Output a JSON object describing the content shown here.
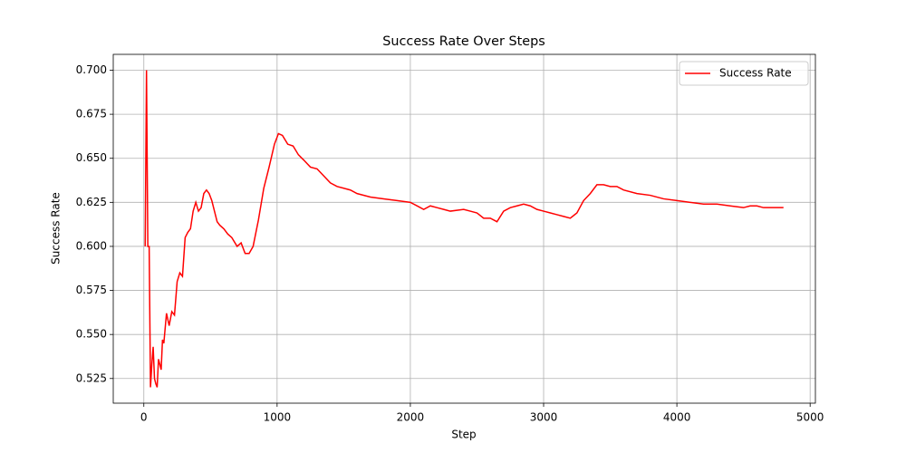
{
  "chart_data": {
    "type": "line",
    "title": "Success Rate Over Steps",
    "xlabel": "Step",
    "ylabel": "Success Rate",
    "x": [
      10,
      20,
      30,
      40,
      50,
      60,
      70,
      80,
      90,
      100,
      110,
      120,
      130,
      140,
      150,
      170,
      190,
      210,
      230,
      250,
      270,
      290,
      310,
      330,
      350,
      370,
      390,
      410,
      430,
      450,
      470,
      490,
      510,
      530,
      550,
      570,
      600,
      630,
      660,
      700,
      730,
      760,
      790,
      820,
      860,
      900,
      940,
      980,
      1010,
      1040,
      1080,
      1120,
      1160,
      1200,
      1250,
      1300,
      1350,
      1400,
      1450,
      1500,
      1550,
      1600,
      1700,
      1800,
      1900,
      2000,
      2050,
      2100,
      2150,
      2200,
      2250,
      2300,
      2400,
      2450,
      2500,
      2550,
      2600,
      2650,
      2700,
      2750,
      2800,
      2850,
      2900,
      2950,
      3000,
      3050,
      3100,
      3150,
      3200,
      3250,
      3300,
      3350,
      3400,
      3450,
      3500,
      3550,
      3600,
      3700,
      3800,
      3900,
      4000,
      4100,
      4200,
      4300,
      4400,
      4500,
      4550,
      4600,
      4650,
      4700,
      4800
    ],
    "series": [
      {
        "name": "Success Rate",
        "color": "#ff0000",
        "values": [
          0.6,
          0.7,
          0.6,
          0.6,
          0.52,
          0.533,
          0.543,
          0.525,
          0.522,
          0.52,
          0.536,
          0.533,
          0.53,
          0.547,
          0.545,
          0.562,
          0.555,
          0.563,
          0.561,
          0.58,
          0.585,
          0.583,
          0.605,
          0.608,
          0.61,
          0.62,
          0.625,
          0.62,
          0.622,
          0.63,
          0.632,
          0.63,
          0.626,
          0.62,
          0.614,
          0.612,
          0.61,
          0.607,
          0.605,
          0.6,
          0.602,
          0.596,
          0.596,
          0.6,
          0.615,
          0.633,
          0.645,
          0.658,
          0.664,
          0.663,
          0.658,
          0.657,
          0.652,
          0.649,
          0.645,
          0.644,
          0.64,
          0.636,
          0.634,
          0.633,
          0.632,
          0.63,
          0.628,
          0.627,
          0.626,
          0.625,
          0.623,
          0.621,
          0.623,
          0.622,
          0.621,
          0.62,
          0.621,
          0.62,
          0.619,
          0.616,
          0.616,
          0.614,
          0.62,
          0.622,
          0.623,
          0.624,
          0.623,
          0.621,
          0.62,
          0.619,
          0.618,
          0.617,
          0.616,
          0.619,
          0.626,
          0.63,
          0.635,
          0.635,
          0.634,
          0.634,
          0.632,
          0.63,
          0.629,
          0.627,
          0.626,
          0.625,
          0.624,
          0.624,
          0.623,
          0.622,
          0.623,
          0.623,
          0.622,
          0.622,
          0.622
        ]
      }
    ],
    "xlim": [
      -229.5,
      5039.5
    ],
    "xticks": [
      0,
      1000,
      2000,
      3000,
      4000,
      5000
    ],
    "ylim": [
      0.511,
      0.709
    ],
    "yticks": [
      {
        "value": 0.525,
        "label": "0.525"
      },
      {
        "value": 0.55,
        "label": "0.550"
      },
      {
        "value": 0.575,
        "label": "0.575"
      },
      {
        "value": 0.6,
        "label": "0.600"
      },
      {
        "value": 0.625,
        "label": "0.625"
      },
      {
        "value": 0.65,
        "label": "0.650"
      },
      {
        "value": 0.675,
        "label": "0.675"
      },
      {
        "value": 0.7,
        "label": "0.700"
      }
    ],
    "grid": true,
    "legend": "upper right"
  }
}
